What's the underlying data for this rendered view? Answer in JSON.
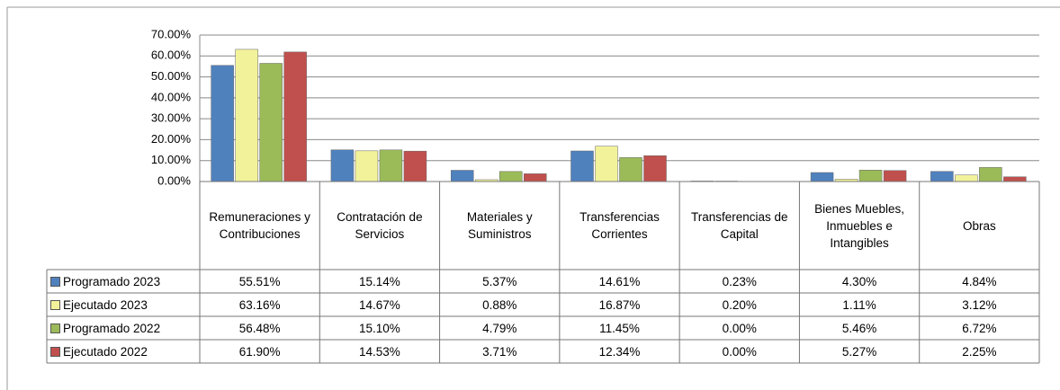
{
  "chart_data": {
    "type": "bar",
    "categories": [
      "Remuneraciones y Contribuciones",
      "Contratación de Servicios",
      "Materiales y Suministros",
      "Transferencias Corrientes",
      "Transferencias de Capital",
      "Bienes Muebles, Inmuebles e Intangibles",
      "Obras"
    ],
    "series": [
      {
        "name": "Programado 2023",
        "color": "#4f81bd",
        "values": [
          55.51,
          15.14,
          5.37,
          14.61,
          0.23,
          4.3,
          4.84
        ],
        "value_labels": [
          "55.51%",
          "15.14%",
          "5.37%",
          "14.61%",
          "0.23%",
          "4.30%",
          "4.84%"
        ]
      },
      {
        "name": "Ejecutado 2023",
        "color": "#f2f29b",
        "values": [
          63.16,
          14.67,
          0.88,
          16.87,
          0.2,
          1.11,
          3.12
        ],
        "value_labels": [
          "63.16%",
          "14.67%",
          "0.88%",
          "16.87%",
          "0.20%",
          "1.11%",
          "3.12%"
        ]
      },
      {
        "name": "Programado 2022",
        "color": "#9bbb59",
        "values": [
          56.48,
          15.1,
          4.79,
          11.45,
          0.0,
          5.46,
          6.72
        ],
        "value_labels": [
          "56.48%",
          "15.10%",
          "4.79%",
          "11.45%",
          "0.00%",
          "5.46%",
          "6.72%"
        ]
      },
      {
        "name": "Ejecutado 2022",
        "color": "#c0504d",
        "values": [
          61.9,
          14.53,
          3.71,
          12.34,
          0.0,
          5.27,
          2.25
        ],
        "value_labels": [
          "61.90%",
          "14.53%",
          "3.71%",
          "12.34%",
          "0.00%",
          "5.27%",
          "2.25%"
        ]
      }
    ],
    "ylim": [
      0,
      70
    ],
    "yticks": [
      {
        "value": 0,
        "label": "0.00%"
      },
      {
        "value": 10,
        "label": "10.00%"
      },
      {
        "value": 20,
        "label": "20.00%"
      },
      {
        "value": 30,
        "label": "30.00%"
      },
      {
        "value": 40,
        "label": "40.00%"
      },
      {
        "value": 50,
        "label": "50.00%"
      },
      {
        "value": 60,
        "label": "60.00%"
      },
      {
        "value": 70,
        "label": "70.00%"
      }
    ],
    "grid": true
  }
}
